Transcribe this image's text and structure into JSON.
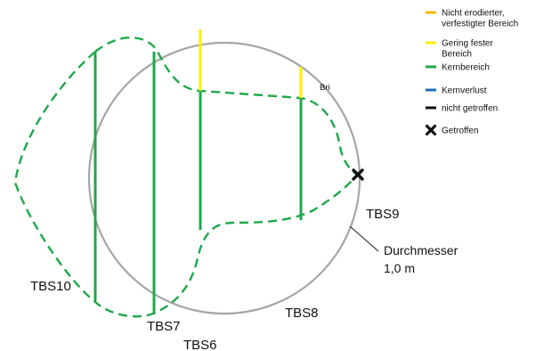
{
  "legend": {
    "items": [
      {
        "id": "uneroded",
        "label_lines": [
          "Nicht erodierter,",
          "verfestigter Bereich"
        ],
        "color": "#f5b800",
        "kind": "line"
      },
      {
        "id": "weak",
        "label_lines": [
          "Gering fester",
          "Bereich"
        ],
        "color": "#ffee00",
        "kind": "line"
      },
      {
        "id": "core",
        "label_lines": [
          "Kernbereich"
        ],
        "color": "#1ea84a",
        "kind": "line"
      },
      {
        "id": "core-loss",
        "label_lines": [
          "Kernverlust"
        ],
        "color": "#1f6fb5",
        "kind": "line"
      },
      {
        "id": "not-hit",
        "label_lines": [
          "nicht getroffen"
        ],
        "color": "#111111",
        "kind": "line"
      },
      {
        "id": "hit",
        "label_lines": [
          "Getroffen"
        ],
        "color": "#111111",
        "kind": "cross"
      }
    ]
  },
  "labels": {
    "tbs10": "TBS10",
    "tbs7": "TBS7",
    "tbs6": "TBS6",
    "tbs8": "TBS8",
    "tbs9": "TBS9",
    "diameter_line1": "Durchmesser",
    "diameter_line2": "1,0 m",
    "partial": "Bri"
  },
  "colors": {
    "circle": "#a6a6a6",
    "core_green": "#1ea84a",
    "outline_green": "#1ea84a",
    "weak_yellow": "#ffee00"
  }
}
